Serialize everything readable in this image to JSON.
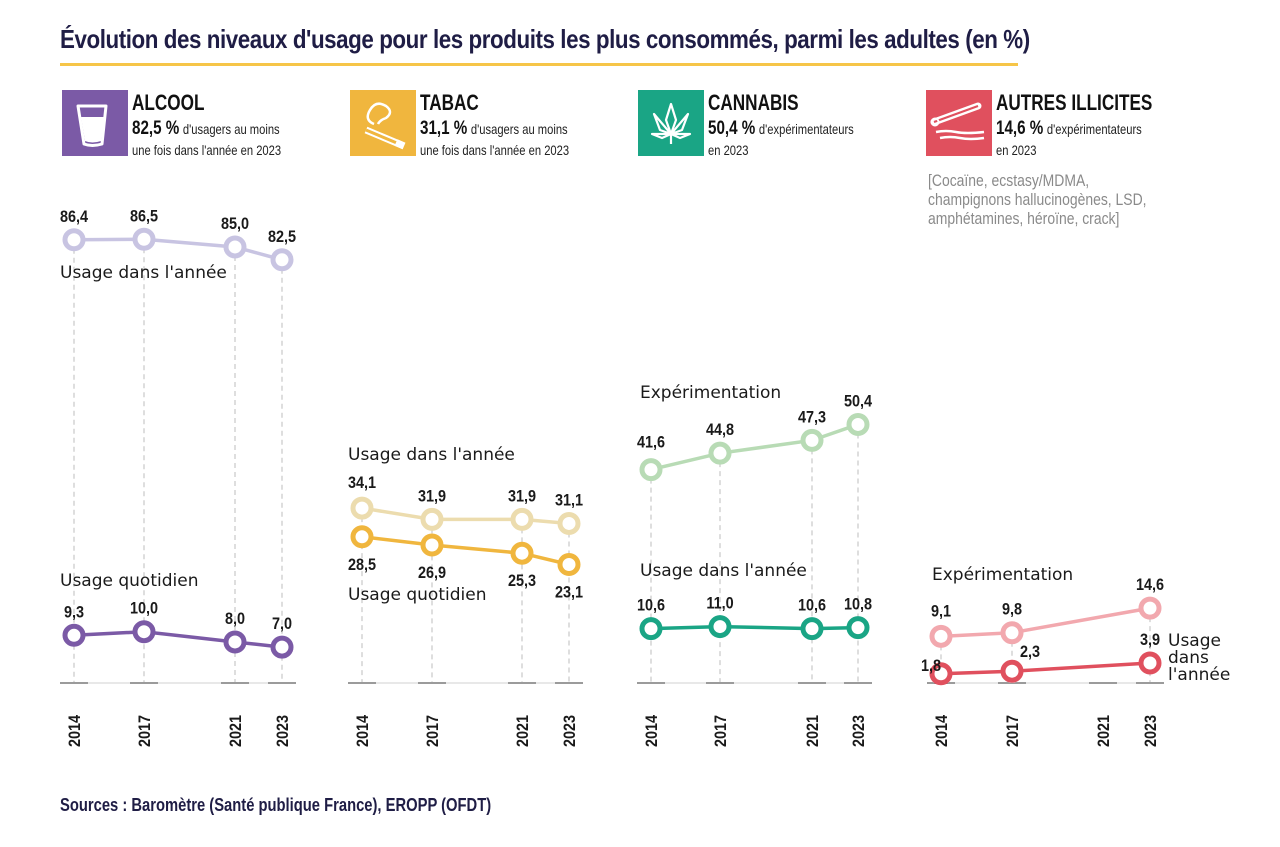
{
  "title": "Évolution des niveaux d'usage pour les produits les plus consommés, parmi les adultes (en %)",
  "source": "Sources : Baromètre (Santé publique France), EROPP (OFDT)",
  "colors": {
    "title": "#1f1d45",
    "rule": "#f6c548",
    "alcool": "#7b5aa6",
    "alcool_light": "#c8c4e2",
    "tabac": "#f0b63e",
    "tabac_light": "#ecdcae",
    "cannabis": "#1aa585",
    "cannabis_light": "#b8dbb5",
    "autres": "#e0505e",
    "autres_light": "#f2a8ae"
  },
  "panels": [
    {
      "id": "alcool",
      "icon": "beer-glass-icon",
      "name": "ALCOOL",
      "pct": "82,5 %",
      "desc1": "d'usagers au moins",
      "desc2": "une fois dans l'année en 2023",
      "note": ""
    },
    {
      "id": "tabac",
      "icon": "cigarette-icon",
      "name": "TABAC",
      "pct": "31,1 %",
      "desc1": "d'usagers au moins",
      "desc2": "une fois dans l'année en 2023",
      "note": ""
    },
    {
      "id": "cannabis",
      "icon": "cannabis-leaf-icon",
      "name": "CANNABIS",
      "pct": "50,4 %",
      "desc1": "d'expérimentateurs",
      "desc2": "en 2023",
      "note": ""
    },
    {
      "id": "autres",
      "icon": "straw-powder-icon",
      "name": "AUTRES ILLICITES",
      "pct": "14,6 %",
      "desc1": "d'expérimentateurs",
      "desc2": "en 2023",
      "note": "[Cocaïne, ecstasy/MDMA, champignons hallucinogènes, LSD, amphétamines, héroïne, crack]"
    }
  ],
  "chart_data": [
    {
      "type": "line",
      "title": "ALCOOL",
      "x": [
        2014,
        2017,
        2021,
        2023
      ],
      "ylim": [
        0,
        100
      ],
      "series": [
        {
          "name": "Usage dans l'année",
          "values": [
            86.4,
            86.5,
            85.0,
            82.5
          ],
          "labels": [
            "86,4",
            "86,5",
            "85,0",
            "82,5"
          ],
          "color": "#c8c4e2"
        },
        {
          "name": "Usage quotidien",
          "values": [
            9.3,
            10.0,
            8.0,
            7.0
          ],
          "labels": [
            "9,3",
            "10,0",
            "8,0",
            "7,0"
          ],
          "color": "#7b5aa6"
        }
      ]
    },
    {
      "type": "line",
      "title": "TABAC",
      "x": [
        2014,
        2017,
        2021,
        2023
      ],
      "ylim": [
        0,
        100
      ],
      "series": [
        {
          "name": "Usage dans l'année",
          "values": [
            34.1,
            31.9,
            31.9,
            31.1
          ],
          "labels": [
            "34,1",
            "31,9",
            "31,9",
            "31,1"
          ],
          "color": "#ecdcae"
        },
        {
          "name": "Usage quotidien",
          "values": [
            28.5,
            26.9,
            25.3,
            23.1
          ],
          "labels": [
            "28,5",
            "26,9",
            "25,3",
            "23,1"
          ],
          "color": "#f0b63e"
        }
      ]
    },
    {
      "type": "line",
      "title": "CANNABIS",
      "x": [
        2014,
        2017,
        2021,
        2023
      ],
      "ylim": [
        0,
        100
      ],
      "series": [
        {
          "name": "Expérimentation",
          "values": [
            41.6,
            44.8,
            47.3,
            50.4
          ],
          "labels": [
            "41,6",
            "44,8",
            "47,3",
            "50,4"
          ],
          "color": "#b8dbb5"
        },
        {
          "name": "Usage dans l'année",
          "values": [
            10.6,
            11.0,
            10.6,
            10.8
          ],
          "labels": [
            "10,6",
            "11,0",
            "10,6",
            "10,8"
          ],
          "color": "#1aa585"
        }
      ]
    },
    {
      "type": "line",
      "title": "AUTRES ILLICITES",
      "x": [
        2014,
        2017,
        2021,
        2023
      ],
      "ylim": [
        0,
        100
      ],
      "series": [
        {
          "name": "Expérimentation",
          "values": [
            9.1,
            9.8,
            null,
            14.6
          ],
          "labels": [
            "9,1",
            "9,8",
            "",
            "14,6"
          ],
          "color": "#f2a8ae"
        },
        {
          "name": "Usage dans l'année",
          "values": [
            1.8,
            2.3,
            null,
            3.9
          ],
          "labels": [
            "1,8",
            "2,3",
            "",
            "3,9"
          ],
          "color": "#e0505e"
        }
      ]
    }
  ]
}
